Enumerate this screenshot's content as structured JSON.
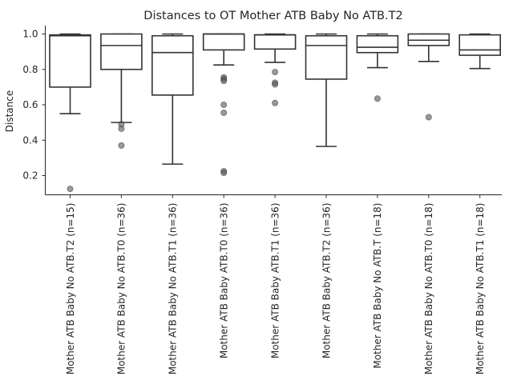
{
  "chart_data": {
    "type": "box",
    "title": "Distances to OT Mother ATB Baby No ATB.T2",
    "xlabel": "",
    "ylabel": "Distance",
    "ylim": [
      0.08,
      1.05
    ],
    "yticks": [
      0.2,
      0.4,
      0.6,
      0.8,
      1.0
    ],
    "ytick_labels": [
      "0.2",
      "0.4",
      "0.6",
      "0.8",
      "1.0"
    ],
    "grid": false,
    "categories": [
      "Mother ATB Baby No ATB.T2 (n=15)",
      "Mother ATB Baby No ATB.T0 (n=36)",
      "Mother ATB Baby No ATB.T1 (n=36)",
      "Mother ATB Baby ATB.T0 (n=36)",
      "Mother ATB Baby ATB.T1 (n=36)",
      "Mother ATB Baby ATB.T2 (n=36)",
      "Mother ATB Baby No ATB.T (n=18)",
      "Mother ATB Baby No ATB.T0 (n=18)",
      "Mother ATB Baby No ATB.T1 (n=18)"
    ],
    "boxes": [
      {
        "whisker_low": 0.55,
        "q1": 0.7,
        "median": 0.99,
        "q3": 0.995,
        "whisker_high": 1.0,
        "outliers": [
          0.125
        ]
      },
      {
        "whisker_low": 0.5,
        "q1": 0.8,
        "median": 0.935,
        "q3": 1.0,
        "whisker_high": 1.0,
        "outliers": [
          0.49,
          0.465,
          0.37
        ]
      },
      {
        "whisker_low": 0.265,
        "q1": 0.655,
        "median": 0.895,
        "q3": 0.99,
        "whisker_high": 1.0,
        "outliers": []
      },
      {
        "whisker_low": 0.825,
        "q1": 0.91,
        "median": 1.0,
        "q3": 1.0,
        "whisker_high": 1.0,
        "outliers": [
          0.755,
          0.745,
          0.735,
          0.6,
          0.555,
          0.225,
          0.215
        ]
      },
      {
        "whisker_low": 0.84,
        "q1": 0.915,
        "median": 0.995,
        "q3": 0.995,
        "whisker_high": 1.0,
        "outliers": [
          0.785,
          0.725,
          0.715,
          0.61
        ]
      },
      {
        "whisker_low": 0.365,
        "q1": 0.745,
        "median": 0.935,
        "q3": 0.99,
        "whisker_high": 1.0,
        "outliers": []
      },
      {
        "whisker_low": 0.81,
        "q1": 0.895,
        "median": 0.925,
        "q3": 0.99,
        "whisker_high": 1.0,
        "outliers": [
          0.635
        ]
      },
      {
        "whisker_low": 0.845,
        "q1": 0.935,
        "median": 0.965,
        "q3": 1.0,
        "whisker_high": 1.0,
        "outliers": [
          0.53
        ]
      },
      {
        "whisker_low": 0.805,
        "q1": 0.88,
        "median": 0.91,
        "q3": 0.995,
        "whisker_high": 1.0,
        "outliers": []
      }
    ]
  }
}
